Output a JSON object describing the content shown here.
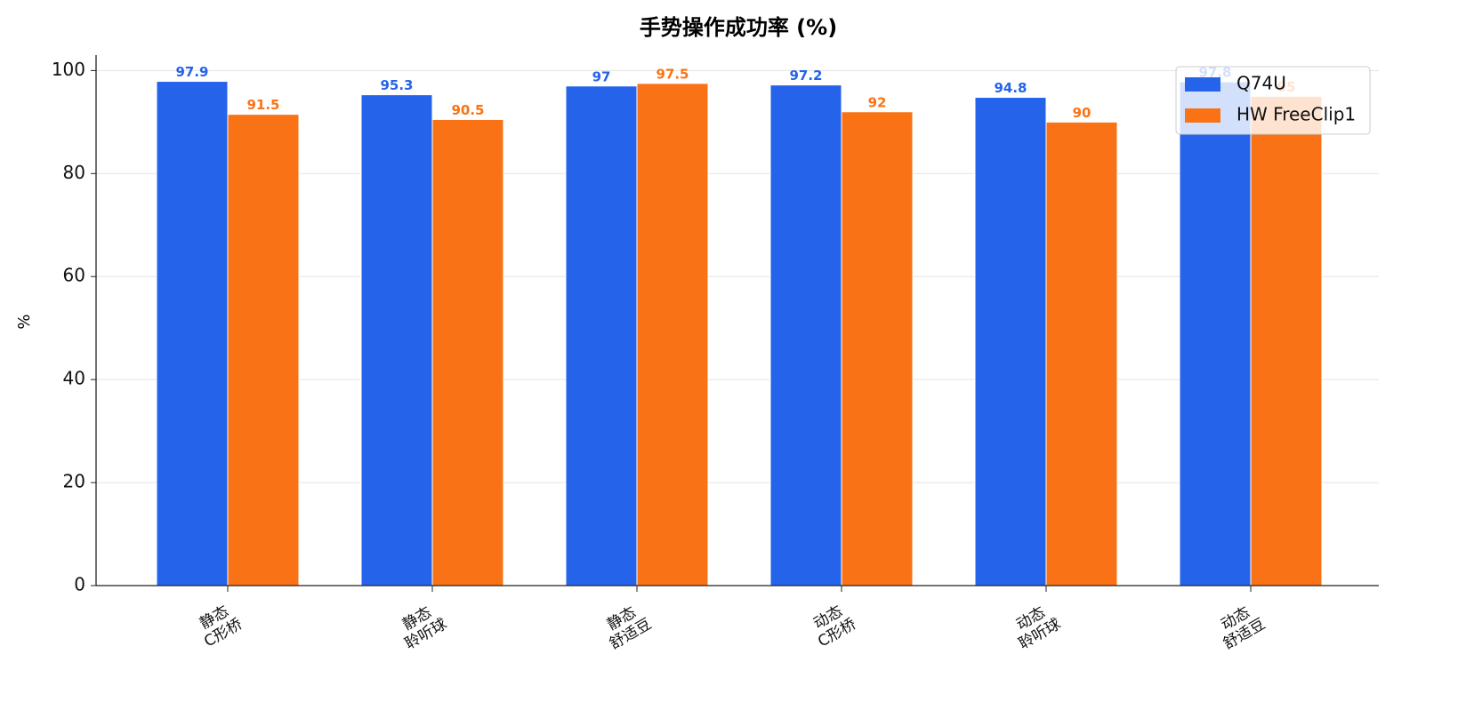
{
  "chart_data": {
    "type": "bar",
    "title": "手势操作成功率 (%)",
    "y_label": "%",
    "categories": [
      "静态\nC形桥",
      "静态\n聆听球",
      "静态\n舒适豆",
      "动态\nC形桥",
      "动态\n聆听球",
      "动态\n舒适豆"
    ],
    "series": [
      {
        "name": "Q74U",
        "color": "#2563eb",
        "values": [
          97.9,
          95.3,
          97,
          97.2,
          94.8,
          97.8
        ]
      },
      {
        "name": "HW FreeClip1",
        "color": "#f97316",
        "values": [
          91.5,
          90.5,
          97.5,
          92,
          90,
          95
        ]
      }
    ],
    "ylim": [
      0,
      103
    ],
    "yticks": [
      0,
      20,
      40,
      60,
      80,
      100
    ],
    "grid": true,
    "legend": "upper right"
  }
}
